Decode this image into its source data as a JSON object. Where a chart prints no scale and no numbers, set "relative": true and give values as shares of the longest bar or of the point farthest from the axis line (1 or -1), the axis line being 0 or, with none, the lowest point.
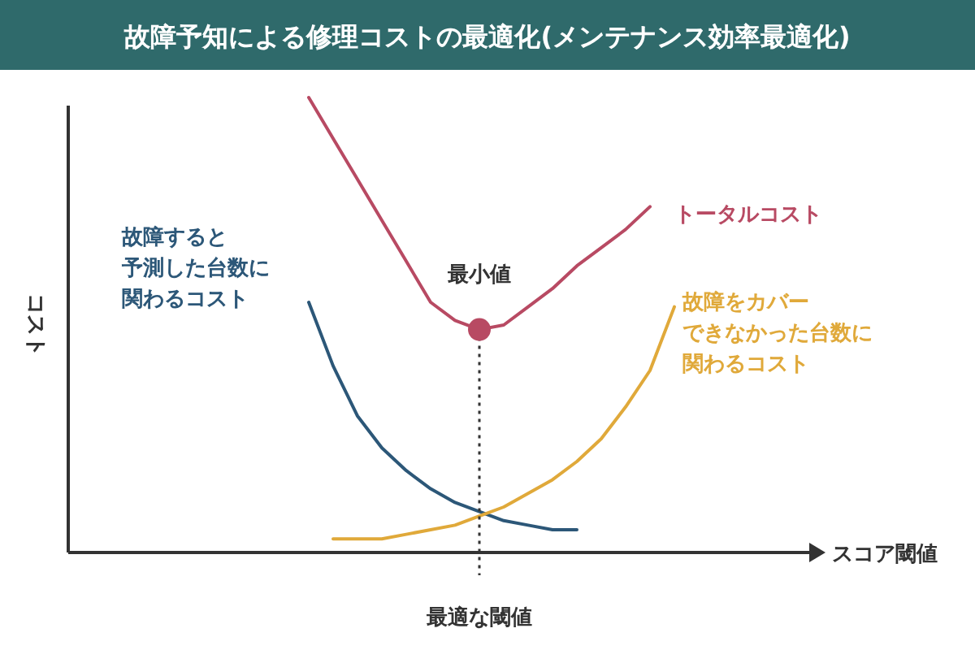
{
  "chart_data": {
    "type": "line",
    "title": "故障予知による修理コストの最適化(メンテナンス効率最適化)",
    "relative": true,
    "grid": false,
    "legend": false,
    "marker": "none",
    "line_style": "solid",
    "categories": [
      null,
      null,
      null,
      null,
      null,
      null,
      null,
      null,
      null,
      null,
      null,
      null,
      null,
      null,
      null,
      null
    ],
    "series": [
      {
        "name": "トータルコスト",
        "color": "#b84a63",
        "values": [
          1,
          0.91,
          0.82,
          0.73,
          0.64,
          0.55,
          0.51,
          0.49,
          0.5,
          0.54,
          0.58,
          0.63,
          0.67,
          0.71,
          0.76,
          null
        ]
      },
      {
        "name": "故障すると予測した台数に関わるコスト",
        "color": "#2c5778",
        "values": [
          0.55,
          0.41,
          0.3,
          0.23,
          0.18,
          0.14,
          0.11,
          0.09,
          0.07,
          0.06,
          0.05,
          0.05,
          null,
          null,
          null,
          null
        ]
      },
      {
        "name": "故障をカバーできなかった台数に関わるコスト",
        "color": "#e0a93a",
        "values": [
          null,
          0.03,
          0.03,
          0.03,
          0.04,
          0.05,
          0.06,
          0.08,
          0.1,
          0.13,
          0.16,
          0.2,
          0.25,
          0.32,
          0.4,
          0.54
        ]
      }
    ],
    "annotations": [
      "最小値",
      "最適な閾値",
      "スコア閾値",
      "コスト"
    ]
  }
}
